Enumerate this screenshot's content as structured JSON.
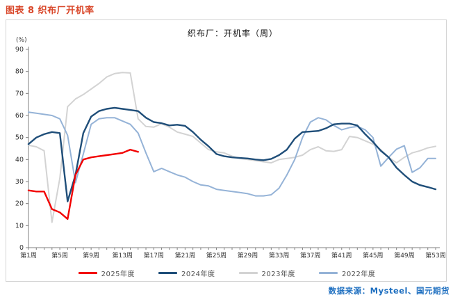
{
  "page": {
    "title": "图表 8  织布厂开机率",
    "title_color": "#d9472a",
    "source": "数据来源：Mysteel、国元期货",
    "source_color": "#1e6fc0"
  },
  "chart_data": {
    "type": "line",
    "title": "织布厂：开机率（周）",
    "unit_label": "(%)",
    "xlabel": "",
    "ylabel": "开机率(%)",
    "ylim": [
      0,
      90
    ],
    "y_ticks": [
      0,
      10,
      20,
      30,
      40,
      50,
      60,
      70,
      80,
      90
    ],
    "x_weeks_total": 53,
    "x_tick_labels": [
      {
        "week": 1,
        "label": "第1周"
      },
      {
        "week": 5,
        "label": "第5周"
      },
      {
        "week": 9,
        "label": "第9周"
      },
      {
        "week": 13,
        "label": "第13周"
      },
      {
        "week": 17,
        "label": "第17周"
      },
      {
        "week": 21,
        "label": "第21周"
      },
      {
        "week": 25,
        "label": "第25周"
      },
      {
        "week": 29,
        "label": "第29周"
      },
      {
        "week": 33,
        "label": "第33周"
      },
      {
        "week": 37,
        "label": "第37周"
      },
      {
        "week": 41,
        "label": "第41周"
      },
      {
        "week": 45,
        "label": "第45周"
      },
      {
        "week": 49,
        "label": "第49周"
      },
      {
        "week": 53,
        "label": "第53周"
      }
    ],
    "grid": false,
    "legend_position": "bottom",
    "series": [
      {
        "name": "2023年度",
        "color": "#d3d3d3",
        "width": 2,
        "start_week": 1,
        "values": [
          46.5,
          45.8,
          44,
          11.5,
          31.5,
          64,
          67.5,
          69.5,
          72,
          74.5,
          77.5,
          79,
          79.5,
          79.3,
          58.5,
          55,
          54.7,
          56.3,
          54.7,
          52.5,
          51.5,
          50.5,
          47.5,
          44.5,
          43.5,
          43,
          41.5,
          40.5,
          40,
          39.5,
          39,
          38.5,
          40,
          40.5,
          41,
          42,
          44.5,
          45.8,
          44,
          43.7,
          44.5,
          50.5,
          50,
          48.5,
          47,
          44.5,
          41,
          38.5,
          41,
          43,
          44,
          45.3,
          46
        ]
      },
      {
        "name": "2022年度",
        "color": "#95b3d7",
        "width": 2,
        "start_week": 1,
        "values": [
          61.5,
          61,
          60.5,
          60,
          58.5,
          51,
          29.5,
          42.5,
          56,
          58.5,
          59,
          59,
          57.5,
          56,
          52,
          43,
          34.5,
          36,
          34.5,
          33,
          32,
          30,
          28.5,
          28,
          26.5,
          26,
          25.5,
          25,
          24.5,
          23.5,
          23.5,
          24,
          27,
          33,
          40,
          50,
          57,
          59,
          58,
          55.5,
          53.5,
          54.5,
          55,
          53.5,
          50,
          37,
          41,
          44.7,
          46.3,
          34.2,
          36.3,
          40.5,
          40.5
        ]
      },
      {
        "name": "2024年度",
        "color": "#1f4e79",
        "width": 2.4,
        "start_week": 1,
        "values": [
          47,
          50,
          51.5,
          52.5,
          52,
          21,
          33,
          52,
          59.5,
          62,
          63,
          63.5,
          63,
          62.5,
          62,
          59,
          57,
          56.5,
          55.5,
          55.8,
          55.3,
          52.5,
          49,
          46,
          42.5,
          41.5,
          41,
          40.7,
          40.5,
          40,
          39.7,
          40.3,
          42,
          44.5,
          49.5,
          52.5,
          52.7,
          53,
          54.2,
          56,
          56.3,
          56.3,
          55.5,
          51.5,
          48,
          44,
          41,
          36.3,
          33,
          30,
          28.4,
          27.5,
          26.5
        ]
      },
      {
        "name": "2025年度",
        "color": "#f20000",
        "width": 2.4,
        "start_week": 1,
        "values": [
          26,
          25.5,
          25.5,
          17.5,
          16,
          13,
          33,
          40,
          41,
          41.5,
          42,
          42.5,
          43,
          44.5,
          43.5
        ]
      }
    ]
  },
  "legend": {
    "items": [
      {
        "label": "2025年度",
        "color": "#f20000"
      },
      {
        "label": "2024年度",
        "color": "#1f4e79"
      },
      {
        "label": "2023年度",
        "color": "#d3d3d3"
      },
      {
        "label": "2022年度",
        "color": "#95b3d7"
      }
    ]
  }
}
